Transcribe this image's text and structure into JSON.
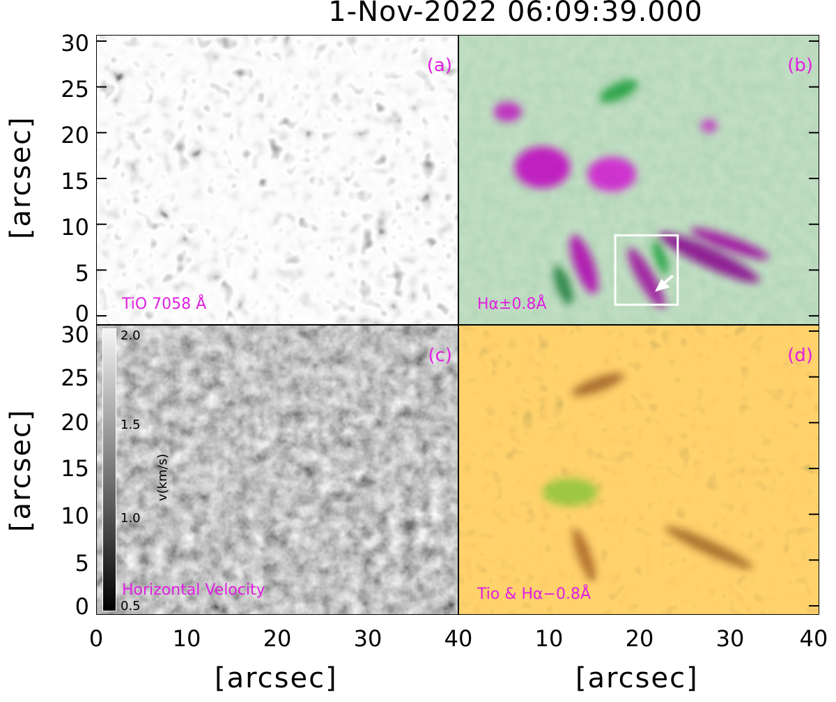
{
  "figure_title": "1-Nov-2022 06:09:39.000",
  "panels": {
    "a": {
      "tag": "(a)",
      "label": "TiO 7058 Å"
    },
    "b": {
      "tag": "(b)",
      "label": "Hα±0.8Å"
    },
    "c": {
      "tag": "(c)",
      "label": "Horizontal Velocity"
    },
    "d": {
      "tag": "(d)",
      "label": "Tio & Hα−0.8Å"
    }
  },
  "colorbar": {
    "title": "v(km/s)",
    "ticks": [
      "2.0",
      "1.5",
      "1.0",
      "0.5"
    ]
  },
  "axes": {
    "y_label": "[arcsec]",
    "x_label": "[arcsec]",
    "y_ticks": [
      "30",
      "25",
      "20",
      "15",
      "10",
      "5",
      "0"
    ],
    "x_ticks_left": [
      "0",
      "10",
      "20",
      "30",
      "40"
    ],
    "x_ticks_right": [
      "10",
      "20",
      "30",
      "40"
    ]
  },
  "colors": {
    "label_magenta": "#e020e0",
    "box_white": "#ffffff"
  }
}
